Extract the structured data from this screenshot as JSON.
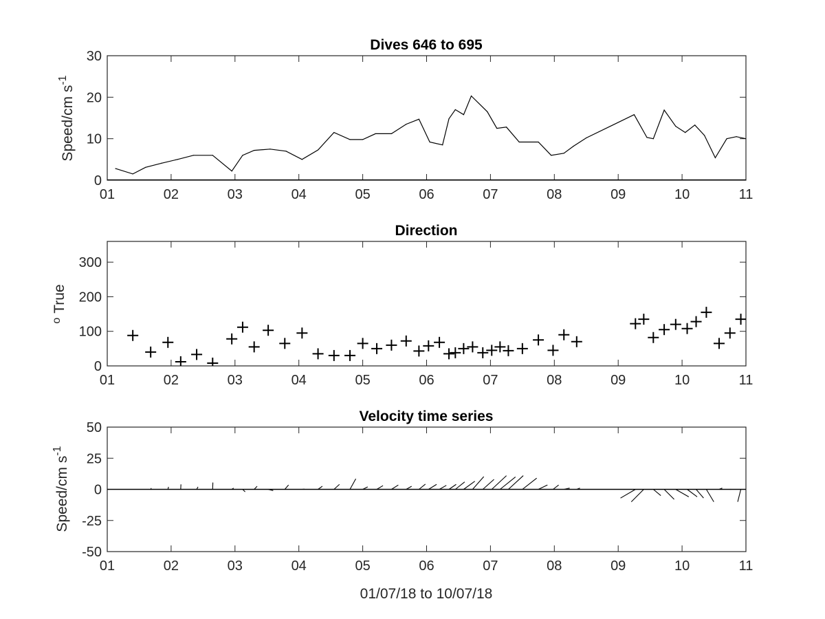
{
  "chart_data": [
    {
      "type": "line",
      "title": "Dives 646 to 695",
      "xlabel": "",
      "ylabel": "Speed/cm s",
      "ylabel_superscript": "-1",
      "xlim": [
        1,
        11
      ],
      "ylim": [
        0,
        30
      ],
      "xticks": [
        1,
        2,
        3,
        4,
        5,
        6,
        7,
        8,
        9,
        10,
        11
      ],
      "xtick_labels": [
        "01",
        "02",
        "03",
        "04",
        "05",
        "06",
        "07",
        "08",
        "09",
        "10",
        "11"
      ],
      "yticks": [
        0,
        10,
        20,
        30
      ],
      "ytick_labels": [
        "0",
        "10",
        "20",
        "30"
      ],
      "grid": false,
      "series": [
        {
          "color": "#000000",
          "x": [
            1.13,
            1.4,
            1.6,
            1.85,
            2.1,
            2.35,
            2.65,
            2.95,
            3.12,
            3.3,
            3.55,
            3.8,
            4.05,
            4.3,
            4.55,
            4.8,
            5.0,
            5.2,
            5.45,
            5.68,
            5.88,
            6.05,
            6.25,
            6.35,
            6.45,
            6.58,
            6.7,
            6.95,
            7.1,
            7.25,
            7.45,
            7.75,
            7.95,
            8.15,
            8.3,
            8.5,
            9.25,
            9.45,
            9.55,
            9.72,
            9.9,
            10.05,
            10.2,
            10.35,
            10.52,
            10.7,
            10.85,
            11.0
          ],
          "y": [
            2.8,
            1.5,
            3.1,
            4.1,
            5.0,
            6.0,
            6.0,
            2.2,
            6.0,
            7.2,
            7.5,
            7.0,
            5.0,
            7.3,
            11.5,
            9.8,
            9.8,
            11.2,
            11.2,
            13.5,
            14.7,
            9.2,
            8.5,
            14.8,
            17.0,
            15.8,
            20.3,
            16.5,
            12.5,
            12.8,
            9.2,
            9.2,
            6.0,
            6.5,
            8.2,
            10.2,
            15.8,
            10.3,
            10.0,
            16.9,
            13.0,
            11.5,
            13.3,
            10.8,
            5.4,
            10.0,
            10.5,
            10.0
          ]
        }
      ]
    },
    {
      "type": "scatter",
      "title": "Direction",
      "xlabel": "",
      "ylabel": "True",
      "ylabel_prefix": "o",
      "xlim": [
        1,
        11
      ],
      "ylim": [
        0,
        360
      ],
      "xticks": [
        1,
        2,
        3,
        4,
        5,
        6,
        7,
        8,
        9,
        10,
        11
      ],
      "xtick_labels": [
        "01",
        "02",
        "03",
        "04",
        "05",
        "06",
        "07",
        "08",
        "09",
        "10",
        "11"
      ],
      "yticks": [
        0,
        100,
        200,
        300
      ],
      "ytick_labels": [
        "0",
        "100",
        "200",
        "300"
      ],
      "grid": false,
      "marker": "+",
      "series": [
        {
          "color": "#000000",
          "x": [
            1.4,
            1.68,
            1.95,
            2.15,
            2.4,
            2.65,
            2.95,
            3.12,
            3.3,
            3.52,
            3.78,
            4.05,
            4.3,
            4.55,
            4.8,
            5.0,
            5.22,
            5.45,
            5.68,
            5.88,
            6.03,
            6.2,
            6.35,
            6.45,
            6.58,
            6.72,
            6.88,
            7.02,
            7.15,
            7.28,
            7.5,
            7.75,
            7.98,
            8.15,
            8.35,
            9.27,
            9.4,
            9.55,
            9.72,
            9.9,
            10.08,
            10.22,
            10.38,
            10.58,
            10.75,
            10.92
          ],
          "y": [
            88,
            40,
            68,
            12,
            33,
            8,
            78,
            112,
            55,
            103,
            65,
            95,
            35,
            30,
            30,
            65,
            50,
            60,
            72,
            43,
            58,
            68,
            35,
            38,
            50,
            55,
            38,
            45,
            55,
            44,
            50,
            75,
            45,
            90,
            70,
            122,
            135,
            82,
            105,
            120,
            108,
            128,
            155,
            65,
            95,
            135
          ]
        }
      ]
    },
    {
      "type": "line",
      "subtype": "quiver",
      "title": "Velocity time series",
      "xlabel": "01/07/18 to 10/07/18",
      "ylabel": "Speed/cm s",
      "ylabel_superscript": "-1",
      "xlim": [
        1,
        11
      ],
      "ylim": [
        -50,
        50
      ],
      "xticks": [
        1,
        2,
        3,
        4,
        5,
        6,
        7,
        8,
        9,
        10,
        11
      ],
      "xtick_labels": [
        "01",
        "02",
        "03",
        "04",
        "05",
        "06",
        "07",
        "08",
        "09",
        "10",
        "11"
      ],
      "yticks": [
        50,
        25,
        0,
        -25,
        -50
      ],
      "ytick_labels": [
        "50",
        "25",
        "0",
        "-25",
        "-50"
      ],
      "grid": false,
      "series": [
        {
          "color": "#000000",
          "x": [
            1.68,
            1.95,
            2.15,
            2.4,
            2.65,
            2.95,
            3.12,
            3.3,
            3.52,
            3.78,
            4.05,
            4.3,
            4.55,
            4.8,
            5.0,
            5.22,
            5.45,
            5.68,
            5.88,
            6.03,
            6.2,
            6.35,
            6.45,
            6.58,
            6.72,
            6.88,
            7.02,
            7.15,
            7.28,
            7.5,
            7.75,
            7.98,
            8.15,
            8.35,
            9.27,
            9.4,
            9.55,
            9.72,
            9.9,
            10.08,
            10.22,
            10.38,
            10.58,
            10.75,
            10.92
          ],
          "u": [
            0.5,
            0.5,
            0.2,
            1.1,
            0.2,
            1.5,
            2.0,
            2.4,
            4.0,
            3.0,
            2.0,
            3.5,
            4.4,
            4.7,
            4.0,
            5.0,
            5.5,
            4.4,
            5.2,
            6.5,
            5.6,
            5.8,
            7.5,
            9.0,
            9.0,
            9.0,
            11.8,
            12.4,
            12.0,
            11.5,
            7.3,
            4.5,
            4.6,
            2.6,
            -12.0,
            -10.0,
            6.0,
            8.0,
            10.5,
            8.0,
            6.0,
            6.0,
            2.5,
            1.0,
            -2.5
          ],
          "v": [
            1.0,
            2.0,
            4.0,
            2.0,
            5.5,
            1.0,
            -2.0,
            2.5,
            -1.0,
            3.5,
            0.2,
            2.5,
            4.0,
            8.5,
            2.0,
            3.0,
            3.5,
            2.5,
            4.2,
            4.0,
            3.2,
            4.0,
            6.0,
            6.5,
            10.2,
            8.0,
            11.0,
            10.0,
            11.0,
            9.0,
            3.5,
            3.5,
            1.0,
            1.0,
            -7.0,
            -10.0,
            -5.0,
            -8.0,
            -6.0,
            -6.0,
            -7.0,
            -10.0,
            1.0,
            0.0,
            -10.0
          ]
        }
      ]
    }
  ]
}
